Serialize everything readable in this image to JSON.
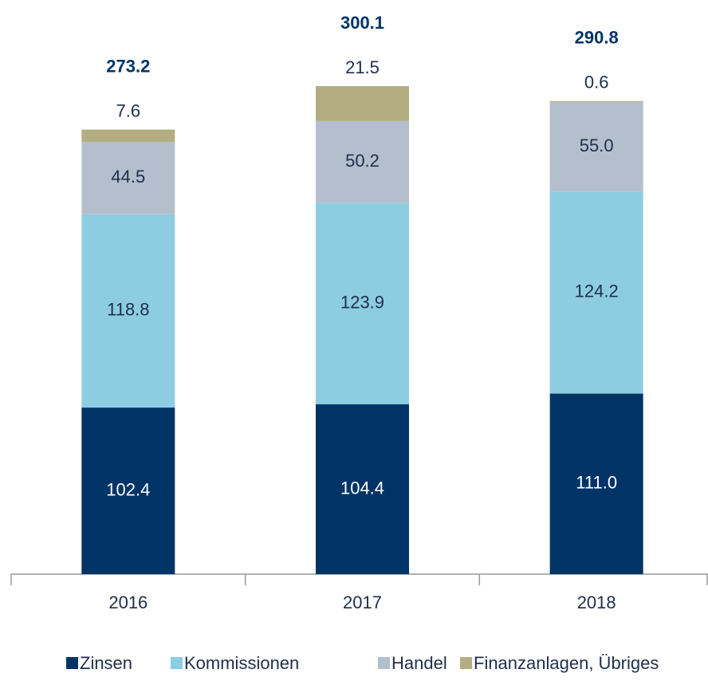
{
  "chart_data": {
    "type": "stacked_bar",
    "categories": [
      "2016",
      "2017",
      "2018"
    ],
    "series": [
      {
        "name": "Zinsen",
        "color": "#003466",
        "values": [
          102.4,
          104.4,
          111.0
        ],
        "value_labels": [
          "102.4",
          "104.4",
          "111.0"
        ]
      },
      {
        "name": "Kommissionen",
        "color": "#8ccde1",
        "values": [
          118.8,
          123.9,
          124.2
        ],
        "value_labels": [
          "118.8",
          "123.9",
          "124.2"
        ]
      },
      {
        "name": "Handel",
        "color": "#b3bfcc",
        "values": [
          44.5,
          50.2,
          55.0
        ],
        "value_labels": [
          "44.5",
          "50.2",
          "55.0"
        ]
      },
      {
        "name": "Finanzanlagen, Übriges",
        "color": "#b5ad82",
        "values": [
          7.6,
          21.5,
          0.6
        ],
        "value_labels": [
          "7.6",
          "21.5",
          "0.6"
        ]
      }
    ],
    "totals": [
      273.2,
      300.1,
      290.8
    ]
  }
}
